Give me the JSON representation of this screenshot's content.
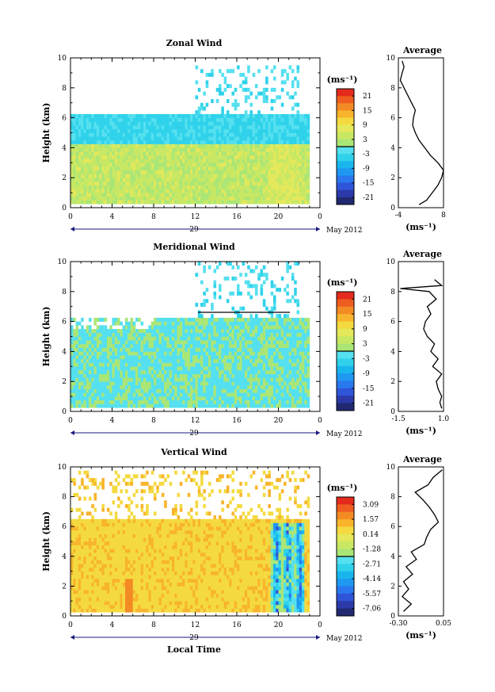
{
  "chart_data": [
    {
      "type": "heatmap",
      "title": "Zonal Wind",
      "ylabel": "Height (km)",
      "xlabel": "",
      "xlim": [
        0,
        24
      ],
      "ylim": [
        0,
        10
      ],
      "xticks": [
        "0",
        "4",
        "8",
        "12",
        "16",
        "20",
        "0"
      ],
      "yticks": [
        "0",
        "2",
        "4",
        "6",
        "8",
        "10"
      ],
      "date_label": "29",
      "month_label": "May 2012",
      "colorbar": {
        "unit": "(ms⁻¹)",
        "ticks": [
          "21",
          "15",
          "9",
          "3",
          "-3",
          "-9",
          "-15",
          "-21"
        ],
        "range": [
          -24,
          24
        ]
      },
      "average": {
        "title": "Average",
        "xlabel": "(ms⁻¹)",
        "xticks": [
          "-4",
          "8"
        ],
        "xlim": [
          -4,
          8
        ],
        "height": [
          0.2,
          0.5,
          1.0,
          1.5,
          2.0,
          2.5,
          3.0,
          3.5,
          4.0,
          4.5,
          5.0,
          5.5,
          6.0,
          6.5,
          7.0,
          7.5,
          8.0,
          8.5,
          9.0,
          9.4,
          9.8
        ],
        "value": [
          1.5,
          3.5,
          5.0,
          6.5,
          7.5,
          8.0,
          6.5,
          4.5,
          3.0,
          1.5,
          0.5,
          -0.2,
          0.0,
          0.5,
          -0.5,
          -1.5,
          -2.5,
          -3.5,
          -3.0,
          -2.5,
          -3.0
        ]
      }
    },
    {
      "type": "heatmap",
      "title": "Meridional Wind",
      "ylabel": "Height (km)",
      "xlabel": "",
      "xlim": [
        0,
        24
      ],
      "ylim": [
        0,
        10
      ],
      "xticks": [
        "0",
        "4",
        "8",
        "12",
        "16",
        "20",
        "0"
      ],
      "yticks": [
        "0",
        "2",
        "4",
        "6",
        "8",
        "10"
      ],
      "date_label": "29",
      "month_label": "May 2012",
      "colorbar": {
        "unit": "(ms⁻¹)",
        "ticks": [
          "21",
          "15",
          "9",
          "3",
          "-3",
          "-9",
          "-15",
          "-21"
        ],
        "range": [
          -24,
          24
        ]
      },
      "average": {
        "title": "Average",
        "xlabel": "(ms⁻¹)",
        "xticks": [
          "-1.5",
          "1.0"
        ],
        "xlim": [
          -1.5,
          1.0
        ],
        "height": [
          0.2,
          0.6,
          1.0,
          1.5,
          2.0,
          2.5,
          3.0,
          3.5,
          4.0,
          4.5,
          5.0,
          5.5,
          6.0,
          6.5,
          7.0,
          7.5,
          8.0,
          8.2,
          8.4,
          8.8
        ],
        "value": [
          0.9,
          0.8,
          0.9,
          0.7,
          0.6,
          0.9,
          0.4,
          0.7,
          0.3,
          0.5,
          0.1,
          -0.1,
          0.0,
          0.3,
          0.1,
          0.6,
          0.2,
          -1.4,
          0.9,
          0.5
        ]
      }
    },
    {
      "type": "heatmap",
      "title": "Vertical Wind",
      "ylabel": "Height (km)",
      "xlabel": "Local Time",
      "xlim": [
        0,
        24
      ],
      "ylim": [
        0,
        10
      ],
      "xticks": [
        "0",
        "4",
        "8",
        "12",
        "16",
        "20",
        "0"
      ],
      "yticks": [
        "0",
        "2",
        "4",
        "6",
        "8",
        "10"
      ],
      "date_label": "29",
      "month_label": "May 2012",
      "colorbar": {
        "unit": "(ms⁻¹)",
        "ticks": [
          "3.09",
          "1.57",
          "0.14",
          "-1.28",
          "-2.71",
          "-4.14",
          "-5.57",
          "-7.06"
        ],
        "range": [
          3.8,
          -7.8
        ]
      },
      "average": {
        "title": "Average",
        "xlabel": "(ms⁻¹)",
        "xticks": [
          "-0.30",
          "0.05"
        ],
        "xlim": [
          -0.3,
          0.05
        ],
        "height": [
          0.3,
          0.8,
          1.3,
          1.8,
          2.3,
          2.8,
          3.3,
          3.8,
          4.3,
          4.8,
          5.3,
          5.8,
          6.3,
          6.8,
          7.3,
          7.8,
          8.3,
          8.8,
          9.3,
          9.8
        ],
        "value": [
          -0.26,
          -0.2,
          -0.27,
          -0.22,
          -0.26,
          -0.19,
          -0.24,
          -0.16,
          -0.2,
          -0.1,
          -0.08,
          -0.05,
          0.01,
          -0.02,
          -0.06,
          -0.11,
          -0.17,
          -0.07,
          -0.03,
          0.04
        ]
      }
    }
  ]
}
